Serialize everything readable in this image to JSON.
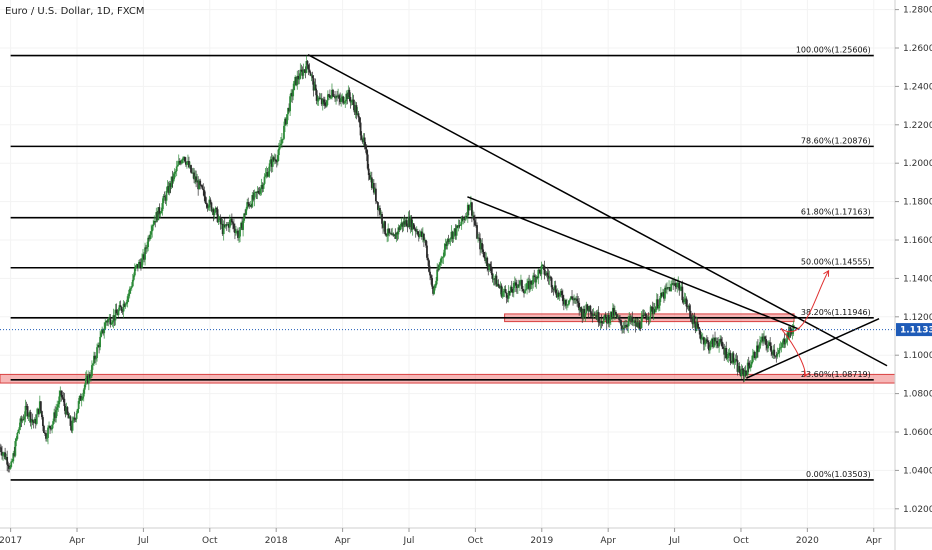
{
  "chart_data": {
    "type": "candlestick",
    "title": "Euro / U.S. Dollar, 1D, FXCM",
    "current_price": "1.11334",
    "ylim": [
      1.01,
      1.285
    ],
    "y_ticks": [
      "1.28000",
      "1.26000",
      "1.24000",
      "1.22000",
      "1.20000",
      "1.18000",
      "1.16000",
      "1.14000",
      "1.12000",
      "1.10000",
      "1.08000",
      "1.06000",
      "1.04000",
      "1.02000"
    ],
    "x_ticks": [
      {
        "label": "2017",
        "t": 2017.0
      },
      {
        "label": "Apr",
        "t": 2017.25
      },
      {
        "label": "Jul",
        "t": 2017.5
      },
      {
        "label": "Oct",
        "t": 2017.75
      },
      {
        "label": "2018",
        "t": 2018.0
      },
      {
        "label": "Apr",
        "t": 2018.25
      },
      {
        "label": "Jul",
        "t": 2018.5
      },
      {
        "label": "Oct",
        "t": 2018.75
      },
      {
        "label": "2019",
        "t": 2019.0
      },
      {
        "label": "Apr",
        "t": 2019.25
      },
      {
        "label": "Jul",
        "t": 2019.5
      },
      {
        "label": "Oct",
        "t": 2019.75
      },
      {
        "label": "2020",
        "t": 2020.0
      },
      {
        "label": "Apr",
        "t": 2020.25
      }
    ],
    "x_range": [
      2016.96,
      2020.33
    ],
    "fib_levels": [
      {
        "label": "100.00%(1.25606)",
        "price": 1.25606
      },
      {
        "label": "78.60%(1.20876)",
        "price": 1.20876
      },
      {
        "label": "61.80%(1.17163)",
        "price": 1.17163
      },
      {
        "label": "50.00%(1.14555)",
        "price": 1.14555
      },
      {
        "label": "38.20%(1.11946)",
        "price": 1.11946
      },
      {
        "label": "23.60%(1.08719)",
        "price": 1.08719
      },
      {
        "label": "0.00%(1.03503)",
        "price": 1.03503
      }
    ],
    "fib_start_t": 2017.0,
    "fib_end_t": 2020.25,
    "zones": [
      {
        "t1": 2016.96,
        "t2": 2020.33,
        "p1": 1.09,
        "p2": 1.0855
      },
      {
        "t1": 2018.86,
        "t2": 2019.95,
        "p1": 1.1215,
        "p2": 1.1175
      }
    ],
    "trendlines": [
      {
        "t1": 2018.12,
        "p1": 1.2565,
        "t2": 2020.3,
        "p2": 1.0945
      },
      {
        "t1": 2018.72,
        "p1": 1.1825,
        "t2": 2019.97,
        "p2": 1.1135
      },
      {
        "t1": 2019.77,
        "p1": 1.088,
        "t2": 2020.27,
        "p2": 1.119
      }
    ],
    "arrows": [
      {
        "points": [
          [
            2019.9,
            1.114
          ],
          [
            2019.99,
            1.105
          ],
          [
            2020.03,
            1.132
          ],
          [
            2020.08,
            1.144
          ]
        ]
      },
      {
        "points": [
          [
            2019.9,
            1.114
          ],
          [
            2019.96,
            1.104
          ],
          [
            2020.0,
            1.092
          ],
          [
            2019.99,
            1.089
          ]
        ]
      }
    ],
    "price_path": [
      [
        2016.96,
        1.052
      ],
      [
        2016.99,
        1.045
      ],
      [
        2017.0,
        1.04
      ],
      [
        2017.03,
        1.062
      ],
      [
        2017.06,
        1.072
      ],
      [
        2017.09,
        1.064
      ],
      [
        2017.11,
        1.074
      ],
      [
        2017.13,
        1.058
      ],
      [
        2017.16,
        1.066
      ],
      [
        2017.19,
        1.08
      ],
      [
        2017.21,
        1.07
      ],
      [
        2017.23,
        1.062
      ],
      [
        2017.25,
        1.072
      ],
      [
        2017.28,
        1.085
      ],
      [
        2017.3,
        1.09
      ],
      [
        2017.33,
        1.105
      ],
      [
        2017.36,
        1.118
      ],
      [
        2017.39,
        1.12
      ],
      [
        2017.42,
        1.125
      ],
      [
        2017.45,
        1.134
      ],
      [
        2017.47,
        1.145
      ],
      [
        2017.5,
        1.15
      ],
      [
        2017.53,
        1.168
      ],
      [
        2017.56,
        1.175
      ],
      [
        2017.59,
        1.185
      ],
      [
        2017.62,
        1.195
      ],
      [
        2017.65,
        1.205
      ],
      [
        2017.68,
        1.195
      ],
      [
        2017.71,
        1.188
      ],
      [
        2017.74,
        1.18
      ],
      [
        2017.77,
        1.175
      ],
      [
        2017.8,
        1.165
      ],
      [
        2017.83,
        1.17
      ],
      [
        2017.86,
        1.162
      ],
      [
        2017.89,
        1.178
      ],
      [
        2017.92,
        1.182
      ],
      [
        2017.95,
        1.19
      ],
      [
        2017.98,
        1.2
      ],
      [
        2018.01,
        1.205
      ],
      [
        2018.04,
        1.225
      ],
      [
        2018.07,
        1.242
      ],
      [
        2018.1,
        1.248
      ],
      [
        2018.12,
        1.252
      ],
      [
        2018.15,
        1.235
      ],
      [
        2018.18,
        1.23
      ],
      [
        2018.21,
        1.238
      ],
      [
        2018.24,
        1.232
      ],
      [
        2018.27,
        1.236
      ],
      [
        2018.3,
        1.228
      ],
      [
        2018.33,
        1.21
      ],
      [
        2018.35,
        1.195
      ],
      [
        2018.38,
        1.18
      ],
      [
        2018.41,
        1.165
      ],
      [
        2018.44,
        1.16
      ],
      [
        2018.47,
        1.168
      ],
      [
        2018.5,
        1.17
      ],
      [
        2018.53,
        1.165
      ],
      [
        2018.56,
        1.16
      ],
      [
        2018.59,
        1.132
      ],
      [
        2018.62,
        1.15
      ],
      [
        2018.65,
        1.162
      ],
      [
        2018.68,
        1.165
      ],
      [
        2018.71,
        1.172
      ],
      [
        2018.73,
        1.18
      ],
      [
        2018.76,
        1.16
      ],
      [
        2018.79,
        1.15
      ],
      [
        2018.82,
        1.14
      ],
      [
        2018.85,
        1.133
      ],
      [
        2018.88,
        1.132
      ],
      [
        2018.91,
        1.138
      ],
      [
        2018.94,
        1.134
      ],
      [
        2018.97,
        1.14
      ],
      [
        2019.0,
        1.145
      ],
      [
        2019.03,
        1.14
      ],
      [
        2019.06,
        1.132
      ],
      [
        2019.09,
        1.128
      ],
      [
        2019.12,
        1.13
      ],
      [
        2019.15,
        1.122
      ],
      [
        2019.18,
        1.125
      ],
      [
        2019.21,
        1.12
      ],
      [
        2019.24,
        1.118
      ],
      [
        2019.27,
        1.122
      ],
      [
        2019.3,
        1.115
      ],
      [
        2019.33,
        1.118
      ],
      [
        2019.36,
        1.115
      ],
      [
        2019.39,
        1.12
      ],
      [
        2019.42,
        1.124
      ],
      [
        2019.45,
        1.13
      ],
      [
        2019.48,
        1.135
      ],
      [
        2019.51,
        1.138
      ],
      [
        2019.54,
        1.128
      ],
      [
        2019.57,
        1.118
      ],
      [
        2019.6,
        1.11
      ],
      [
        2019.63,
        1.105
      ],
      [
        2019.66,
        1.108
      ],
      [
        2019.69,
        1.102
      ],
      [
        2019.72,
        1.098
      ],
      [
        2019.75,
        1.09
      ],
      [
        2019.77,
        1.092
      ],
      [
        2019.8,
        1.1
      ],
      [
        2019.83,
        1.108
      ],
      [
        2019.86,
        1.104
      ],
      [
        2019.89,
        1.1
      ],
      [
        2019.92,
        1.11
      ],
      [
        2019.95,
        1.114
      ]
    ]
  }
}
